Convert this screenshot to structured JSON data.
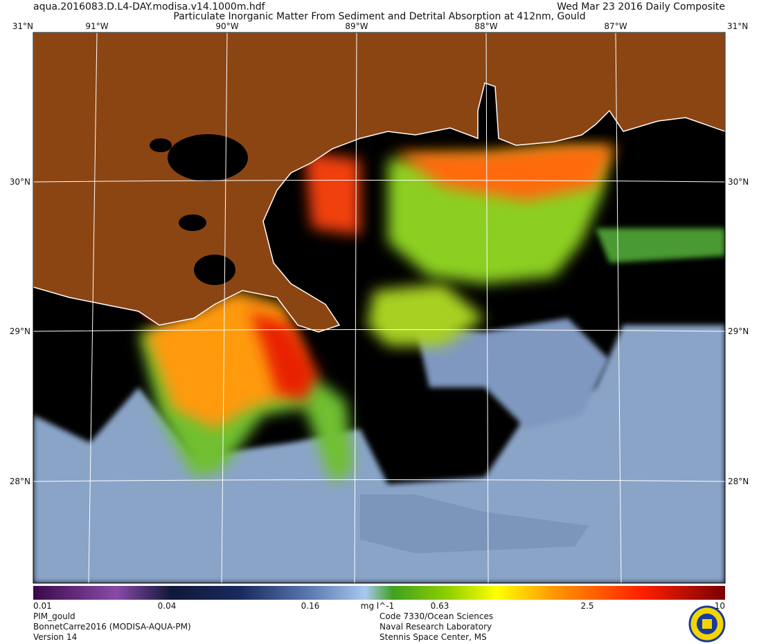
{
  "header": {
    "file": "aqua.2016083.D.L4-DAY.modisa.v14.1000m.hdf",
    "date": "Wed Mar 23 2016 Daily Composite",
    "title": "Particulate Inorganic Matter From Sediment and Detrital Absorption at 412nm, Gould"
  },
  "map": {
    "lon_labels": [
      "91°W",
      "90°W",
      "89°W",
      "88°W",
      "87°W"
    ],
    "lat_labels": [
      "30°N",
      "29°N",
      "28°N"
    ],
    "corner_label": "31°N"
  },
  "colorbar": {
    "labels": [
      "0.01",
      "0.04",
      "0.16",
      "0.63",
      "2.5",
      "10"
    ],
    "units": "mg l^-1"
  },
  "footer": {
    "left": [
      "PIM_gould",
      "BonnetCarre2016 (MODISA-AQUA-PM)",
      "Version 14"
    ],
    "center": [
      "Code 7330/Ocean Sciences",
      "Naval Research Laboratory",
      "Stennis Space Center, MS"
    ]
  }
}
